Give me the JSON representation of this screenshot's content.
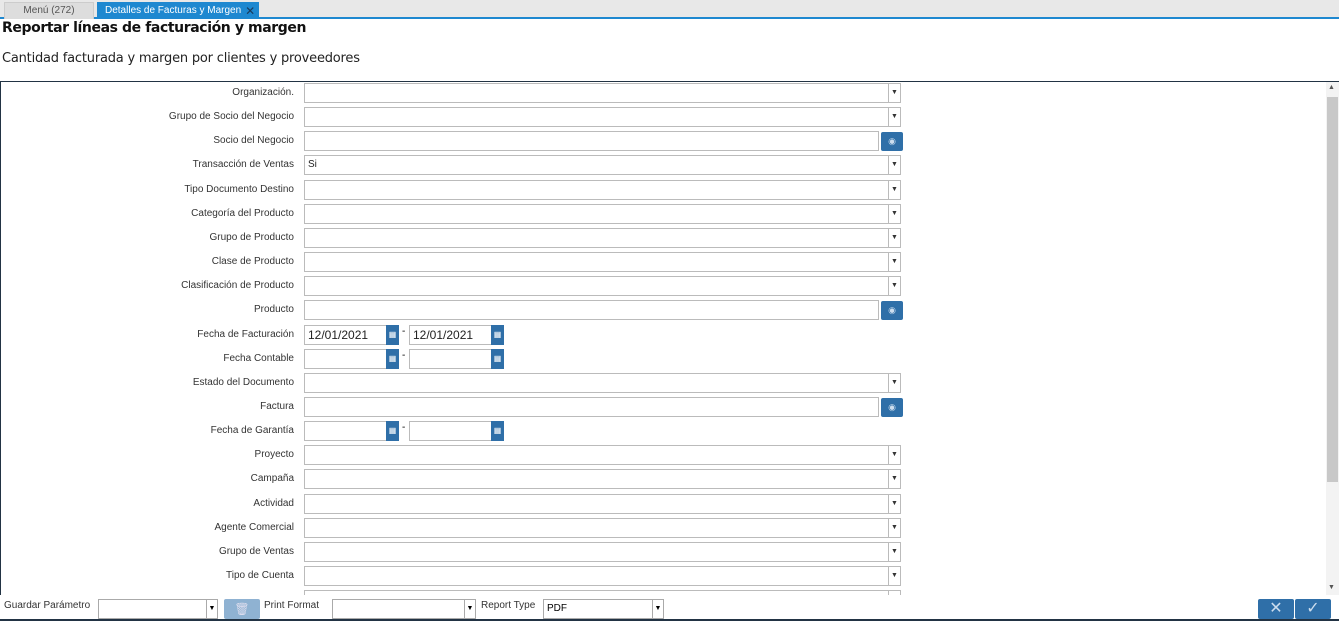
{
  "tabs": [
    {
      "label": "Menú (272)"
    },
    {
      "label": "Detalles de Facturas y Margen"
    }
  ],
  "title": "Reportar líneas de facturación y margen",
  "subtitle": "Cantidad facturada y margen por clientes y proveedores",
  "fields": [
    {
      "label": "Organización.",
      "type": "select",
      "value": ""
    },
    {
      "label": "Grupo de Socio del Negocio",
      "type": "select",
      "value": ""
    },
    {
      "label": "Socio del Negocio",
      "type": "lookup",
      "value": ""
    },
    {
      "label": "Transacción de Ventas",
      "type": "select",
      "value": "Si"
    },
    {
      "label": "Tipo Documento Destino",
      "type": "select",
      "value": ""
    },
    {
      "label": "Categoría del Producto",
      "type": "select",
      "value": ""
    },
    {
      "label": "Grupo de Producto",
      "type": "select",
      "value": ""
    },
    {
      "label": "Clase de Producto",
      "type": "select",
      "value": ""
    },
    {
      "label": "Clasificación de Producto",
      "type": "select",
      "value": ""
    },
    {
      "label": "Producto",
      "type": "lookup",
      "value": ""
    },
    {
      "label": "Fecha de Facturación",
      "type": "daterange",
      "from": "12/01/2021",
      "to": "12/01/2021"
    },
    {
      "label": "Fecha Contable",
      "type": "daterange",
      "from": "",
      "to": ""
    },
    {
      "label": "Estado del Documento",
      "type": "select",
      "value": ""
    },
    {
      "label": "Factura",
      "type": "lookup",
      "value": ""
    },
    {
      "label": "Fecha de Garantía",
      "type": "daterange",
      "from": "",
      "to": ""
    },
    {
      "label": "Proyecto",
      "type": "select",
      "value": ""
    },
    {
      "label": "Campaña",
      "type": "select",
      "value": ""
    },
    {
      "label": "Actividad",
      "type": "select",
      "value": ""
    },
    {
      "label": "Agente Comercial",
      "type": "select",
      "value": ""
    },
    {
      "label": "Grupo de Ventas",
      "type": "select",
      "value": ""
    },
    {
      "label": "Tipo de Cuenta",
      "type": "select",
      "value": ""
    },
    {
      "label": "",
      "type": "select",
      "value": ""
    }
  ],
  "footer": {
    "save_param_label": "Guardar Parámetro",
    "save_param_value": "",
    "print_format_label": "Print Format",
    "print_format_value": "",
    "report_type_label": "Report Type",
    "report_type_value": "PDF"
  },
  "colors": {
    "accent": "#1e88d0",
    "button": "#2f6fa8"
  }
}
